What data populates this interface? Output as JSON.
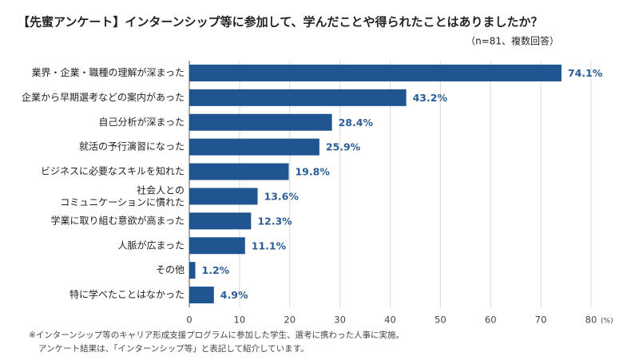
{
  "chart_data": {
    "type": "hbar",
    "title": "【先蜜アンケート】インターンシップ等に参加して、学んだことや得られたことはありましたか？",
    "subtitle": "（n=81、複数回答）",
    "categories": [
      "業界・企業・職種の理解が深まった",
      "企業から早期選考などの案内があった",
      "自己分析が深まった",
      "就活の予行演習になった",
      "ビジネスに必要なスキルを知れた",
      "社会人との\nコミュニケーションに慣れた",
      "学業に取り組む意欲が高まった",
      "人脈が広まった",
      "その他",
      "特に学べたことはなかった"
    ],
    "values": [
      74.1,
      43.2,
      28.4,
      25.9,
      19.8,
      13.6,
      12.3,
      11.1,
      1.2,
      4.9
    ],
    "value_labels": [
      "74.1%",
      "43.2%",
      "28.4%",
      "25.9%",
      "19.8%",
      "13.6%",
      "12.3%",
      "11.1%",
      "1.2%",
      "4.9%"
    ],
    "color": "#1f5591",
    "xlim": [
      0,
      80
    ],
    "xticks": [
      0,
      10,
      20,
      30,
      40,
      50,
      60,
      70,
      80
    ],
    "x_unit": "(%)",
    "grid": true,
    "notes": [
      "※インターンシップ等のキャリア形成支援プログラムに参加した学生、選考に携わった人事に実施。",
      "アンケート結果は、「インターンシップ等」と表記して紹介しています。"
    ]
  }
}
